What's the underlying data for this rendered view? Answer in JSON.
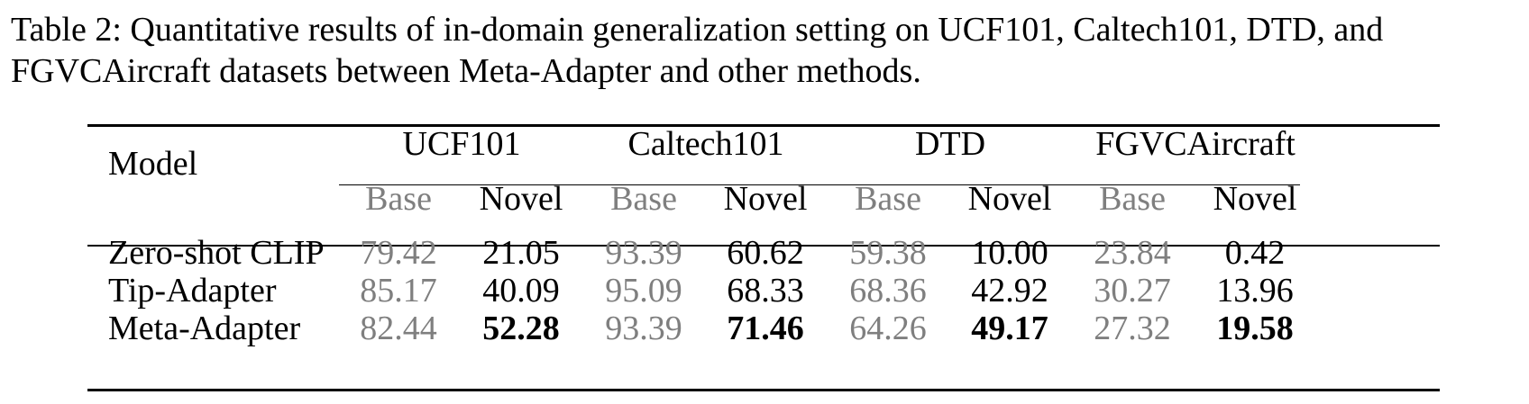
{
  "caption": "Table 2: Quantitative results of in-domain generalization setting on UCF101, Caltech101, DTD, and FGVCAircraft datasets between Meta-Adapter and other methods.",
  "table": {
    "model_header": "Model",
    "datasets": [
      "UCF101",
      "Caltech101",
      "DTD",
      "FGVCAircraft"
    ],
    "subheaders": [
      "Base",
      "Novel",
      "Base",
      "Novel",
      "Base",
      "Novel",
      "Base",
      "Novel"
    ],
    "rows": [
      {
        "model": "Zero-shot CLIP",
        "values": [
          "79.42",
          "21.05",
          "93.39",
          "60.62",
          "59.38",
          "10.00",
          "23.84",
          "0.42"
        ],
        "bold": [
          false,
          false,
          false,
          false,
          false,
          false,
          false,
          false
        ]
      },
      {
        "model": "Tip-Adapter",
        "values": [
          "85.17",
          "40.09",
          "95.09",
          "68.33",
          "68.36",
          "42.92",
          "30.27",
          "13.96"
        ],
        "bold": [
          false,
          false,
          false,
          false,
          false,
          false,
          false,
          false
        ]
      },
      {
        "model": "Meta-Adapter",
        "values": [
          "82.44",
          "52.28",
          "93.39",
          "71.46",
          "64.26",
          "49.17",
          "27.32",
          "19.58"
        ],
        "bold": [
          false,
          true,
          false,
          true,
          false,
          true,
          false,
          true
        ]
      }
    ],
    "colors": {
      "base_text": "#7f7f7f",
      "novel_text": "#000000"
    }
  }
}
